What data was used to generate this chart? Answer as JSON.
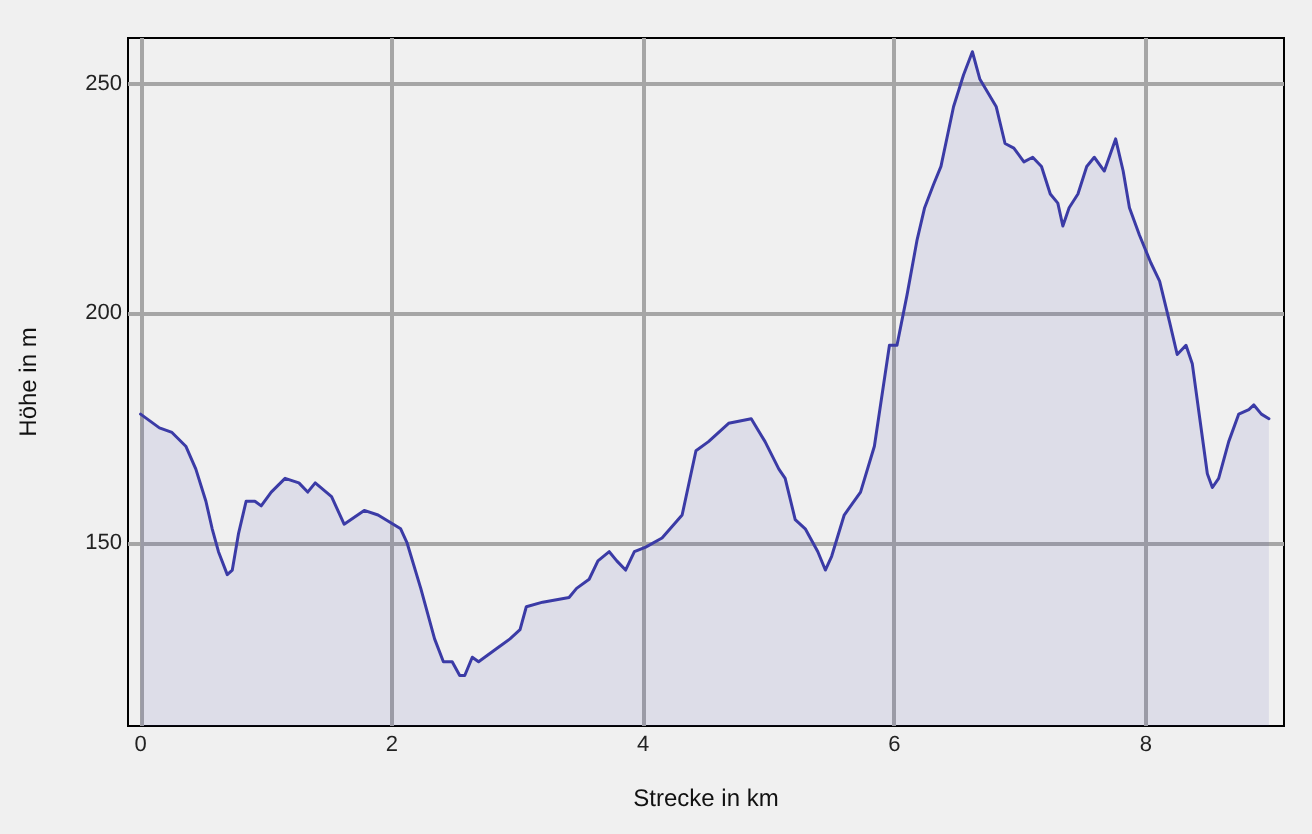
{
  "chart_data": {
    "type": "area",
    "xlabel": "Strecke in km",
    "ylabel": "Höhe in m",
    "x": [
      0,
      0.15,
      0.25,
      0.36,
      0.44,
      0.52,
      0.57,
      0.62,
      0.69,
      0.73,
      0.78,
      0.84,
      0.91,
      0.96,
      1.04,
      1.15,
      1.26,
      1.33,
      1.39,
      1.52,
      1.62,
      1.78,
      1.89,
      2.07,
      2.12,
      2.23,
      2.34,
      2.41,
      2.48,
      2.54,
      2.58,
      2.64,
      2.69,
      2.84,
      2.94,
      3.02,
      3.07,
      3.2,
      3.41,
      3.47,
      3.57,
      3.64,
      3.73,
      3.79,
      3.86,
      3.93,
      4.02,
      4.15,
      4.31,
      4.42,
      4.52,
      4.68,
      4.86,
      4.97,
      5.08,
      5.13,
      5.21,
      5.29,
      5.39,
      5.45,
      5.5,
      5.6,
      5.73,
      5.84,
      5.96,
      6.02,
      6.1,
      6.18,
      6.24,
      6.31,
      6.37,
      6.47,
      6.55,
      6.62,
      6.68,
      6.81,
      6.88,
      6.95,
      7.03,
      7.1,
      7.17,
      7.24,
      7.3,
      7.34,
      7.39,
      7.46,
      7.53,
      7.59,
      7.67,
      7.76,
      7.82,
      7.87,
      7.95,
      8.04,
      8.11,
      8.19,
      8.25,
      8.32,
      8.37,
      8.43,
      8.49,
      8.53,
      8.58,
      8.66,
      8.74,
      8.82,
      8.86,
      8.92,
      8.98
    ],
    "values": [
      178,
      175,
      174,
      171,
      166,
      159,
      153,
      148,
      143,
      144,
      152,
      159,
      159,
      158,
      161,
      164,
      163,
      161,
      163,
      160,
      154,
      157,
      156,
      153,
      150,
      140,
      129,
      124,
      124,
      121,
      121,
      125,
      124,
      127,
      129,
      131,
      136,
      137,
      138,
      140,
      142,
      146,
      148,
      146,
      144,
      148,
      149,
      151,
      156,
      170,
      172,
      176,
      177,
      172,
      166,
      164,
      155,
      153,
      148,
      144,
      147,
      156,
      161,
      171,
      193,
      193,
      204,
      216,
      223,
      228,
      232,
      245,
      252,
      257,
      251,
      245,
      237,
      236,
      233,
      234,
      232,
      226,
      224,
      219,
      223,
      226,
      232,
      234,
      231,
      238,
      231,
      223,
      217,
      211,
      207,
      198,
      191,
      193,
      189,
      177,
      165,
      162,
      164,
      172,
      178,
      179,
      180,
      178,
      177
    ],
    "color": "#3b3ba6",
    "xlim": [
      -0.1,
      9.1
    ],
    "xticks": [
      0,
      2,
      4,
      6,
      8
    ],
    "ylim": [
      110,
      260
    ],
    "yticks": [
      150,
      200,
      250
    ],
    "grid": true,
    "marker": "none"
  }
}
